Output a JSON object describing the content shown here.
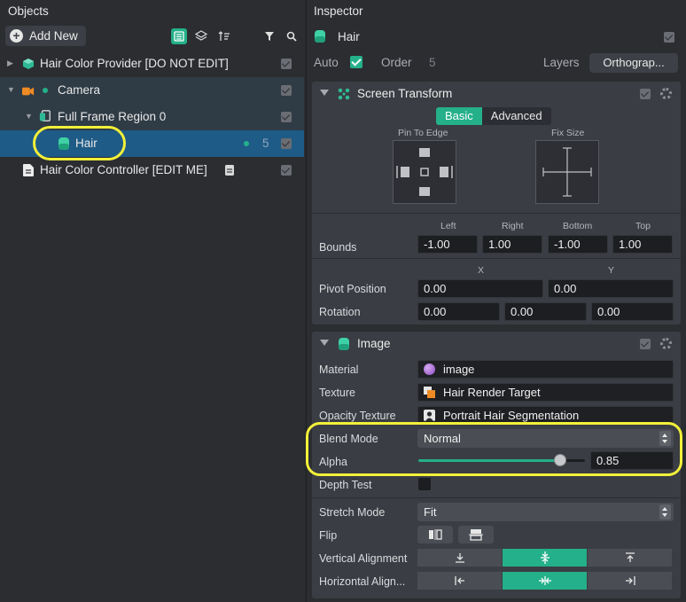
{
  "objects": {
    "title": "Objects",
    "add_new_label": "Add New",
    "items": [
      {
        "label": "Hair Color Provider [DO NOT EDIT]"
      },
      {
        "label": "Camera"
      },
      {
        "label": "Full Frame Region 0"
      },
      {
        "label": "Hair",
        "layer_count": "5"
      },
      {
        "label": "Hair Color Controller [EDIT ME]"
      }
    ]
  },
  "inspector": {
    "title": "Inspector",
    "object_name": "Hair",
    "auto_label": "Auto",
    "order_label": "Order",
    "order_value": "5",
    "layers_label": "Layers",
    "layers_value": "Orthograp...",
    "screen_transform": {
      "title": "Screen Transform",
      "tab_basic": "Basic",
      "tab_advanced": "Advanced",
      "pin_to_edge": "Pin To Edge",
      "fix_size": "Fix Size",
      "bounds_label": "Bounds",
      "bounds_cols": [
        "Left",
        "Right",
        "Bottom",
        "Top"
      ],
      "bounds_values": [
        "-1.00",
        "1.00",
        "-1.00",
        "1.00"
      ],
      "xy_cols": [
        "X",
        "Y"
      ],
      "pivot_label": "Pivot Position",
      "pivot_values": [
        "0.00",
        "0.00"
      ],
      "rotation_label": "Rotation",
      "rotation_values": [
        "0.00",
        "0.00",
        "0.00"
      ]
    },
    "image": {
      "title": "Image",
      "material_label": "Material",
      "material_value": "image",
      "texture_label": "Texture",
      "texture_value": "Hair Render Target",
      "opacity_label": "Opacity Texture",
      "opacity_value": "Portrait Hair Segmentation",
      "blend_label": "Blend Mode",
      "blend_value": "Normal",
      "alpha_label": "Alpha",
      "alpha_value": "0.85",
      "depth_label": "Depth Test",
      "stretch_label": "Stretch Mode",
      "stretch_value": "Fit",
      "flip_label": "Flip",
      "valign_label": "Vertical Alignment",
      "halign_label": "Horizontal Align..."
    }
  },
  "colors": {
    "accent": "#24b08a",
    "highlight": "#f3f03a",
    "selection": "#1e5b86"
  }
}
